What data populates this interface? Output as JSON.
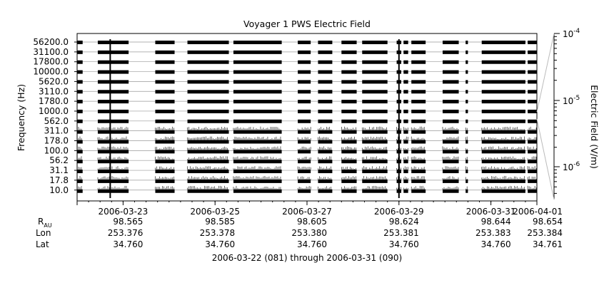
{
  "chart_data": {
    "type": "heatmap",
    "title": "Voyager 1 PWS Electric Field",
    "ylabel": "Frequency (Hz)",
    "colorbar_label": "Electric Field (V/m)",
    "colorbar_ticks": [
      {
        "base": "10",
        "exp": "-4"
      },
      {
        "base": "10",
        "exp": "-5"
      },
      {
        "base": "10",
        "exp": "-6"
      }
    ],
    "frequency_channels_hz": [
      "56200.0",
      "31100.0",
      "17800.0",
      "10000.0",
      "5620.0",
      "3110.0",
      "1780.0",
      "1000.0",
      "562.0",
      "311.0",
      "178.0",
      "100.0",
      "56.2",
      "31.1",
      "17.8",
      "10.0"
    ],
    "x_range": [
      "2006-03-22",
      "2006-04-01"
    ],
    "x_tick_labels": [
      "2006-03-23",
      "2006-03-25",
      "2006-03-27",
      "2006-03-29",
      "2006-03-31",
      "2006-04-01"
    ],
    "x_tick_days": [
      1,
      3,
      5,
      7,
      9,
      10
    ],
    "data_coverage_days": [
      [
        0.0,
        0.12
      ],
      [
        0.45,
        1.12
      ],
      [
        1.7,
        2.12
      ],
      [
        2.4,
        3.3
      ],
      [
        3.4,
        4.45
      ],
      [
        4.8,
        5.08
      ],
      [
        5.24,
        5.55
      ],
      [
        5.75,
        6.08
      ],
      [
        6.2,
        6.75
      ],
      [
        6.95,
        7.05
      ],
      [
        7.1,
        7.2
      ],
      [
        7.27,
        7.58
      ],
      [
        7.95,
        8.3
      ],
      [
        8.45,
        8.5
      ],
      [
        8.8,
        9.75
      ],
      [
        9.8,
        10.0
      ]
    ],
    "spike_days": [
      0.72,
      7.0
    ],
    "ephemeris": {
      "row_labels": [
        {
          "base": "R",
          "sub": "AU"
        },
        {
          "base": "Lon"
        },
        {
          "base": "Lat"
        }
      ],
      "values": [
        [
          "98.565",
          "253.376",
          "34.760"
        ],
        [
          "98.585",
          "253.378",
          "34.760"
        ],
        [
          "98.605",
          "253.380",
          "34.760"
        ],
        [
          "98.624",
          "253.381",
          "34.760"
        ],
        [
          "98.644",
          "253.383",
          "34.760"
        ],
        [
          "98.654",
          "253.384",
          "34.761"
        ]
      ]
    },
    "date_range_caption": "2006-03-22 (081) through 2006-03-31 (090)",
    "colors": {
      "ink": "#000000",
      "grid": "#999999",
      "connector": "#bbbbbb"
    }
  }
}
